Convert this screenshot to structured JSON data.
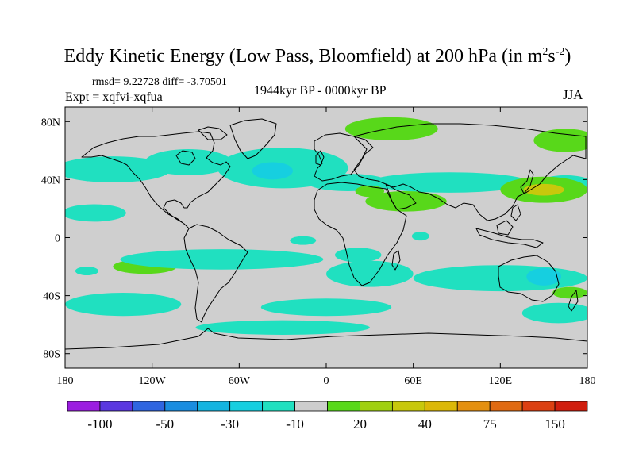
{
  "title": {
    "main": "Eddy Kinetic Energy (Low Pass, Bloomfield) at 200 hPa (in m",
    "sup1": "2",
    "mid": "s",
    "sup2": "-2",
    "close": ")"
  },
  "stats": "rmsd= 9.22728 diff= -3.70501",
  "experiment": "Expt = xqfvi-xqfua",
  "period": "1944kyr BP - 0000kyr BP",
  "season": "JJA",
  "map": {
    "ocean_land_color": "#cfcfcf",
    "coast_color": "#000000",
    "x_ticks": [
      {
        "lon": -180,
        "label": "180"
      },
      {
        "lon": -120,
        "label": "120W"
      },
      {
        "lon": -60,
        "label": "60W"
      },
      {
        "lon": 0,
        "label": "0"
      },
      {
        "lon": 60,
        "label": "60E"
      },
      {
        "lon": 120,
        "label": "120E"
      },
      {
        "lon": 180,
        "label": "180"
      }
    ],
    "y_ticks": [
      {
        "lat": 80,
        "label": "80N"
      },
      {
        "lat": 40,
        "label": "40N"
      },
      {
        "lat": 0,
        "label": "0"
      },
      {
        "lat": -40,
        "label": "40S"
      },
      {
        "lat": -80,
        "label": "80S"
      }
    ],
    "lon_range": [
      -180,
      180
    ],
    "lat_range": [
      -90,
      90
    ]
  },
  "colorbar": {
    "colors": [
      "#9b1de0",
      "#5a37e0",
      "#2f65e0",
      "#1a8de0",
      "#14b4e0",
      "#16cfe0",
      "#20e0c0",
      "#cdcdcd",
      "#58d81a",
      "#a0d010",
      "#c8c80c",
      "#dcb808",
      "#e49010",
      "#e06a12",
      "#dc4012",
      "#d01e0e"
    ],
    "labels": [
      {
        "index": 1,
        "text": "-100"
      },
      {
        "index": 3,
        "text": "-50"
      },
      {
        "index": 5,
        "text": "-30"
      },
      {
        "index": 7,
        "text": "-10"
      },
      {
        "index": 9,
        "text": "20"
      },
      {
        "index": 11,
        "text": "40"
      },
      {
        "index": 13,
        "text": "75"
      },
      {
        "index": 15,
        "text": "150"
      }
    ]
  },
  "field_patches": [
    {
      "lon": -147,
      "lat": 47,
      "rx": 40,
      "ry": 9,
      "value": -10
    },
    {
      "lon": -160,
      "lat": 17,
      "rx": 22,
      "ry": 6,
      "value": -10
    },
    {
      "lon": -95,
      "lat": 52,
      "rx": 30,
      "ry": 9,
      "value": -10
    },
    {
      "lon": -30,
      "lat": 48,
      "rx": 45,
      "ry": 14,
      "value": -10
    },
    {
      "lon": -37,
      "lat": 46,
      "rx": 14,
      "ry": 6,
      "value": -30
    },
    {
      "lon": 15,
      "lat": 38,
      "rx": 28,
      "ry": 6,
      "value": -10
    },
    {
      "lon": 85,
      "lat": 38,
      "rx": 55,
      "ry": 7,
      "value": -10
    },
    {
      "lon": 165,
      "lat": 36,
      "rx": 20,
      "ry": 7,
      "value": -10
    },
    {
      "lon": 45,
      "lat": 75,
      "rx": 32,
      "ry": 8,
      "value": 20
    },
    {
      "lon": 165,
      "lat": 67,
      "rx": 22,
      "ry": 8,
      "value": 20
    },
    {
      "lon": 150,
      "lat": 33,
      "rx": 30,
      "ry": 9,
      "value": 20
    },
    {
      "lon": 150,
      "lat": 33,
      "rx": 14,
      "ry": 4,
      "value": 40
    },
    {
      "lon": 55,
      "lat": 25,
      "rx": 28,
      "ry": 7,
      "value": 20
    },
    {
      "lon": 30,
      "lat": 32,
      "rx": 10,
      "ry": 4,
      "value": 20
    },
    {
      "lon": -165,
      "lat": -23,
      "rx": 8,
      "ry": 3,
      "value": -10
    },
    {
      "lon": -125,
      "lat": -20,
      "rx": 22,
      "ry": 5,
      "value": 20
    },
    {
      "lon": -72,
      "lat": -15,
      "rx": 70,
      "ry": 7,
      "value": -10
    },
    {
      "lon": 22,
      "lat": -12,
      "rx": 16,
      "ry": 5,
      "value": -10
    },
    {
      "lon": -16,
      "lat": -2,
      "rx": 9,
      "ry": 3,
      "value": -10
    },
    {
      "lon": 65,
      "lat": 1,
      "rx": 6,
      "ry": 3,
      "value": -10
    },
    {
      "lon": 30,
      "lat": -25,
      "rx": 30,
      "ry": 9,
      "value": -10
    },
    {
      "lon": 120,
      "lat": -28,
      "rx": 60,
      "ry": 9,
      "value": -10
    },
    {
      "lon": 150,
      "lat": -27,
      "rx": 12,
      "ry": 6,
      "value": -30
    },
    {
      "lon": 168,
      "lat": -38,
      "rx": 12,
      "ry": 4,
      "value": 20
    },
    {
      "lon": 0,
      "lat": -48,
      "rx": 45,
      "ry": 6,
      "value": -10
    },
    {
      "lon": -140,
      "lat": -46,
      "rx": 40,
      "ry": 8,
      "value": -10
    },
    {
      "lon": -30,
      "lat": -62,
      "rx": 60,
      "ry": 5,
      "value": -10
    },
    {
      "lon": 160,
      "lat": -52,
      "rx": 25,
      "ry": 7,
      "value": -10
    }
  ]
}
